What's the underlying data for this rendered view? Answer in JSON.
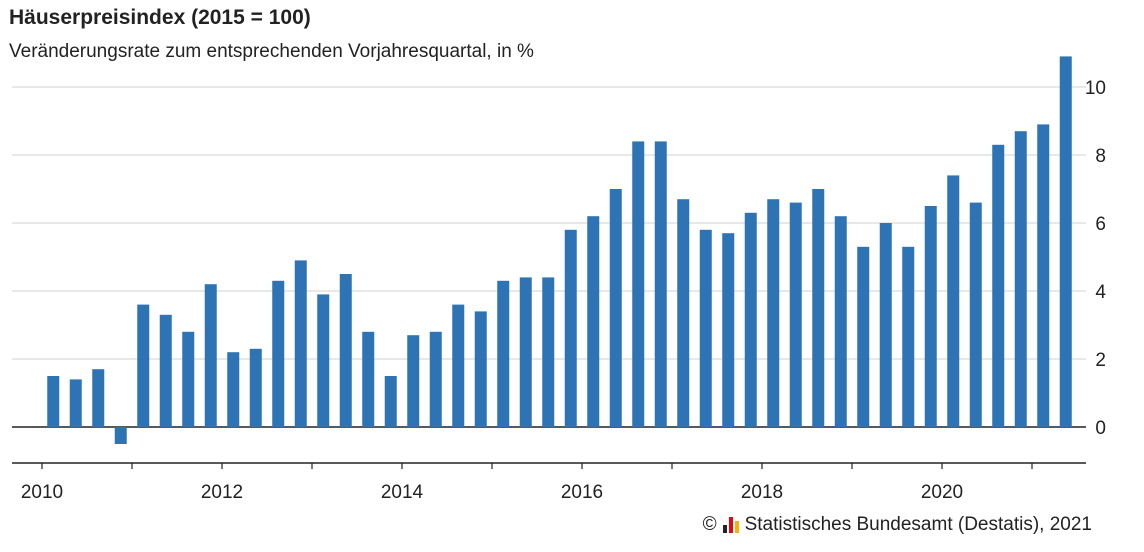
{
  "title": "Häuserpreisindex (2015 = 100)",
  "subtitle": "Veränderungsrate zum entsprechenden Vorjahresquartal, in %",
  "source": {
    "copyright_symbol": "©",
    "text": "Statistisches Bundesamt (Destatis), 2021",
    "logo_colors": [
      "#222222",
      "#e30613",
      "#f9b000"
    ]
  },
  "chart_data": {
    "type": "bar",
    "bar_color": "#2e74b5",
    "x": [
      "2010 Q1",
      "2010 Q2",
      "2010 Q3",
      "2010 Q4",
      "2011 Q1",
      "2011 Q2",
      "2011 Q3",
      "2011 Q4",
      "2012 Q1",
      "2012 Q2",
      "2012 Q3",
      "2012 Q4",
      "2013 Q1",
      "2013 Q2",
      "2013 Q3",
      "2013 Q4",
      "2014 Q1",
      "2014 Q2",
      "2014 Q3",
      "2014 Q4",
      "2015 Q1",
      "2015 Q2",
      "2015 Q3",
      "2015 Q4",
      "2016 Q1",
      "2016 Q2",
      "2016 Q3",
      "2016 Q4",
      "2017 Q1",
      "2017 Q2",
      "2017 Q3",
      "2017 Q4",
      "2018 Q1",
      "2018 Q2",
      "2018 Q3",
      "2018 Q4",
      "2019 Q1",
      "2019 Q2",
      "2019 Q3",
      "2019 Q4",
      "2020 Q1",
      "2020 Q2",
      "2020 Q3",
      "2020 Q4",
      "2021 Q1",
      "2021 Q2"
    ],
    "values": [
      1.5,
      1.4,
      1.7,
      -0.5,
      3.6,
      3.3,
      2.8,
      4.2,
      2.2,
      2.3,
      4.3,
      4.9,
      3.9,
      4.5,
      2.8,
      1.5,
      2.7,
      2.8,
      3.6,
      3.4,
      4.3,
      4.4,
      4.4,
      5.8,
      6.2,
      7.0,
      8.4,
      8.4,
      6.7,
      5.8,
      5.7,
      6.3,
      6.7,
      6.6,
      7.0,
      6.2,
      5.3,
      6.0,
      5.3,
      6.5,
      7.4,
      6.6,
      8.3,
      8.7,
      8.9,
      10.9
    ],
    "ylim": [
      -1,
      11
    ],
    "y_ticks": [
      0,
      2,
      4,
      6,
      8,
      10
    ],
    "x_tick_labels": [
      "2010",
      "2012",
      "2014",
      "2016",
      "2018",
      "2020"
    ],
    "x_tick_years": [
      2010,
      2012,
      2014,
      2016,
      2018,
      2020
    ],
    "grid": true,
    "y_axis_side": "right"
  }
}
